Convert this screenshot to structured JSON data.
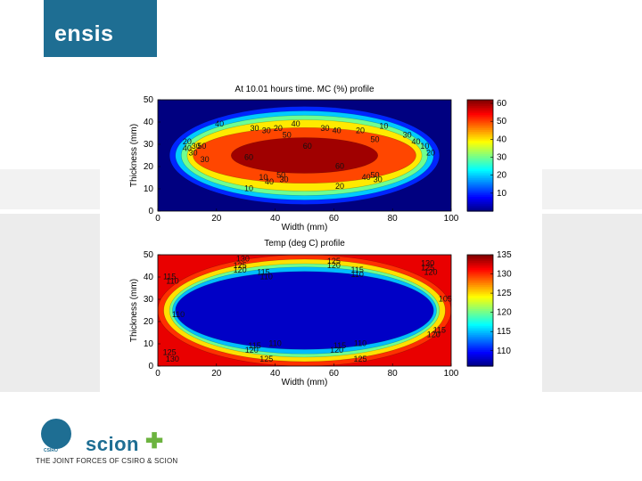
{
  "brand": {
    "name": "ensis",
    "accent": "#1e6e93",
    "green": "#6cb33f"
  },
  "footer": {
    "csiro": "CSIRO",
    "scion": "scion",
    "tagline": "THE JOINT FORCES OF CSIRO & SCION"
  },
  "chart_data": [
    {
      "type": "heatmap",
      "title": "At 10.01 hours time. MC (%) profile",
      "xlabel": "Width (mm)",
      "ylabel": "Thickness (mm)",
      "xlim": [
        0,
        100
      ],
      "ylim": [
        0,
        50
      ],
      "xticks": [
        0,
        20,
        40,
        60,
        80,
        100
      ],
      "yticks": [
        0,
        10,
        20,
        30,
        40,
        50
      ],
      "colorbar": {
        "min": 0,
        "max": 62,
        "ticks": [
          10,
          20,
          30,
          40,
          50,
          60
        ]
      },
      "background_value": 0,
      "levels": [
        {
          "value": 10,
          "rx": 46,
          "ry": 22
        },
        {
          "value": 20,
          "rx": 44,
          "ry": 20
        },
        {
          "value": 30,
          "rx": 42,
          "ry": 18
        },
        {
          "value": 40,
          "rx": 40,
          "ry": 16
        },
        {
          "value": 50,
          "rx": 38,
          "ry": 12.5
        },
        {
          "value": 60,
          "rx": 25,
          "ry": 8
        }
      ],
      "contour_labels": [
        {
          "x": 10,
          "y": 31,
          "text": "20"
        },
        {
          "x": 13,
          "y": 29,
          "text": "30"
        },
        {
          "x": 10,
          "y": 28,
          "text": "40"
        },
        {
          "x": 15,
          "y": 29,
          "text": "50"
        },
        {
          "x": 12,
          "y": 26,
          "text": "30"
        },
        {
          "x": 16,
          "y": 23,
          "text": "30"
        },
        {
          "x": 21,
          "y": 39,
          "text": "40"
        },
        {
          "x": 33,
          "y": 37,
          "text": "30"
        },
        {
          "x": 37,
          "y": 36,
          "text": "30"
        },
        {
          "x": 41,
          "y": 37,
          "text": "20"
        },
        {
          "x": 47,
          "y": 39,
          "text": "40"
        },
        {
          "x": 44,
          "y": 34,
          "text": "50"
        },
        {
          "x": 57,
          "y": 37,
          "text": "30"
        },
        {
          "x": 61,
          "y": 36,
          "text": "40"
        },
        {
          "x": 69,
          "y": 36,
          "text": "20"
        },
        {
          "x": 77,
          "y": 38,
          "text": "10"
        },
        {
          "x": 74,
          "y": 32,
          "text": "50"
        },
        {
          "x": 85,
          "y": 34,
          "text": "30"
        },
        {
          "x": 88,
          "y": 31,
          "text": "40"
        },
        {
          "x": 91,
          "y": 29,
          "text": "10"
        },
        {
          "x": 93,
          "y": 26,
          "text": "20"
        },
        {
          "x": 51,
          "y": 29,
          "text": "60"
        },
        {
          "x": 31,
          "y": 24,
          "text": "60"
        },
        {
          "x": 62,
          "y": 20,
          "text": "60"
        },
        {
          "x": 42,
          "y": 16,
          "text": "50"
        },
        {
          "x": 43,
          "y": 14,
          "text": "30"
        },
        {
          "x": 36,
          "y": 15,
          "text": "10"
        },
        {
          "x": 38,
          "y": 13,
          "text": "40"
        },
        {
          "x": 74,
          "y": 16,
          "text": "50"
        },
        {
          "x": 71,
          "y": 15,
          "text": "40"
        },
        {
          "x": 75,
          "y": 14,
          "text": "30"
        },
        {
          "x": 62,
          "y": 11,
          "text": "20"
        },
        {
          "x": 31,
          "y": 10,
          "text": "10"
        }
      ]
    },
    {
      "type": "heatmap",
      "title": "Temp (deg C) profile",
      "xlabel": "Width (mm)",
      "ylabel": "Thickness (mm)",
      "xlim": [
        0,
        100
      ],
      "ylim": [
        0,
        50
      ],
      "xticks": [
        0,
        20,
        40,
        60,
        80,
        100
      ],
      "yticks": [
        0,
        10,
        20,
        30,
        40,
        50
      ],
      "colorbar": {
        "min": 106,
        "max": 135,
        "ticks": [
          110,
          115,
          120,
          125,
          130,
          135
        ]
      },
      "background_value": 132,
      "levels": [
        {
          "value": 130,
          "rx": 50,
          "ry": 25
        },
        {
          "value": 125,
          "rx": 48,
          "ry": 23
        },
        {
          "value": 120,
          "rx": 46,
          "ry": 21
        },
        {
          "value": 115,
          "rx": 45,
          "ry": 19.5
        },
        {
          "value": 108,
          "rx": 44,
          "ry": 17.5
        }
      ],
      "contour_labels": [
        {
          "x": 29,
          "y": 48,
          "text": "130"
        },
        {
          "x": 28,
          "y": 45,
          "text": "125"
        },
        {
          "x": 28,
          "y": 43,
          "text": "120"
        },
        {
          "x": 36,
          "y": 42,
          "text": "115"
        },
        {
          "x": 37,
          "y": 40,
          "text": "110"
        },
        {
          "x": 60,
          "y": 47,
          "text": "125"
        },
        {
          "x": 60,
          "y": 45,
          "text": "120"
        },
        {
          "x": 68,
          "y": 43,
          "text": "115"
        },
        {
          "x": 68,
          "y": 41,
          "text": "110"
        },
        {
          "x": 92,
          "y": 46,
          "text": "130"
        },
        {
          "x": 92,
          "y": 44,
          "text": "125"
        },
        {
          "x": 93,
          "y": 42,
          "text": "120"
        },
        {
          "x": 4,
          "y": 40,
          "text": "115"
        },
        {
          "x": 5,
          "y": 38,
          "text": "110"
        },
        {
          "x": 7,
          "y": 23,
          "text": "110"
        },
        {
          "x": 98,
          "y": 30,
          "text": "105"
        },
        {
          "x": 96,
          "y": 16,
          "text": "115"
        },
        {
          "x": 94,
          "y": 14,
          "text": "120"
        },
        {
          "x": 40,
          "y": 10,
          "text": "110"
        },
        {
          "x": 33,
          "y": 9,
          "text": "115"
        },
        {
          "x": 32,
          "y": 7,
          "text": "120"
        },
        {
          "x": 62,
          "y": 9,
          "text": "115"
        },
        {
          "x": 61,
          "y": 7,
          "text": "120"
        },
        {
          "x": 69,
          "y": 10,
          "text": "110"
        },
        {
          "x": 4,
          "y": 6,
          "text": "125"
        },
        {
          "x": 5,
          "y": 3,
          "text": "130"
        },
        {
          "x": 37,
          "y": 3,
          "text": "125"
        },
        {
          "x": 69,
          "y": 3,
          "text": "125"
        }
      ]
    }
  ]
}
